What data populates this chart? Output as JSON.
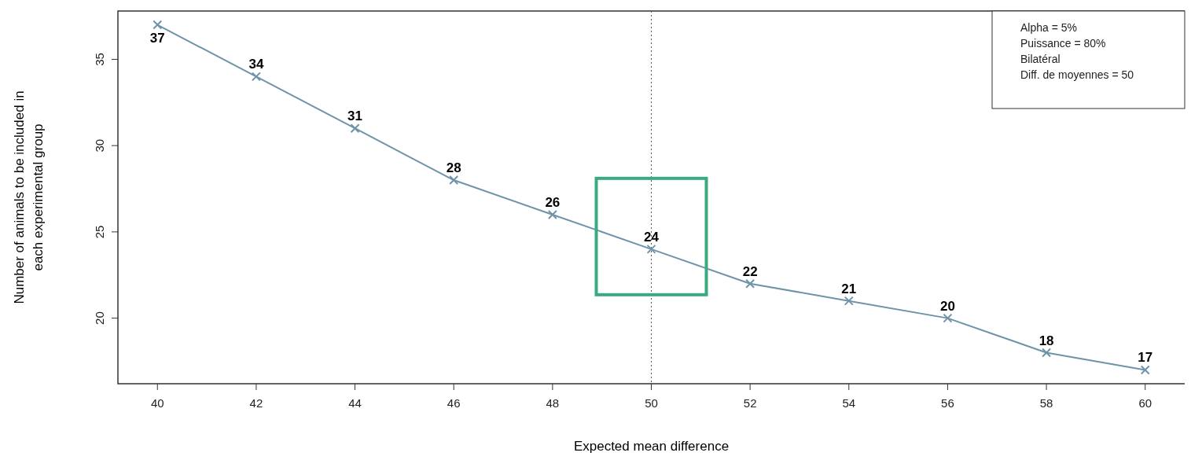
{
  "chart_data": {
    "type": "line",
    "xlabel": "Expected mean difference",
    "ylabel": "Number of animals to be included in each experimental group",
    "x": [
      40,
      42,
      44,
      46,
      48,
      50,
      52,
      54,
      56,
      58,
      60
    ],
    "series": [
      {
        "color": "#6f93a8",
        "values": [
          37,
          34,
          31,
          28,
          26,
          24,
          22,
          21,
          20,
          18,
          17
        ]
      }
    ],
    "xlim": [
      39.2,
      60.8
    ],
    "xticks": [
      40,
      42,
      44,
      46,
      48,
      50,
      52,
      54,
      56,
      58,
      60
    ],
    "ylim": [
      16.2,
      37.8
    ],
    "yticks": [
      20,
      25,
      30,
      35
    ],
    "marker": "cross",
    "line_style": "solid",
    "data_labels": true,
    "grid": false,
    "ref_lines": [
      {
        "axis": "x",
        "value": 50,
        "color": "#555555",
        "line_style": "dotted"
      }
    ],
    "annotations": [
      "Alpha = 5%",
      "Puissance = 80%",
      "Bilatéral",
      "Diff. de moyennes = 50"
    ]
  }
}
